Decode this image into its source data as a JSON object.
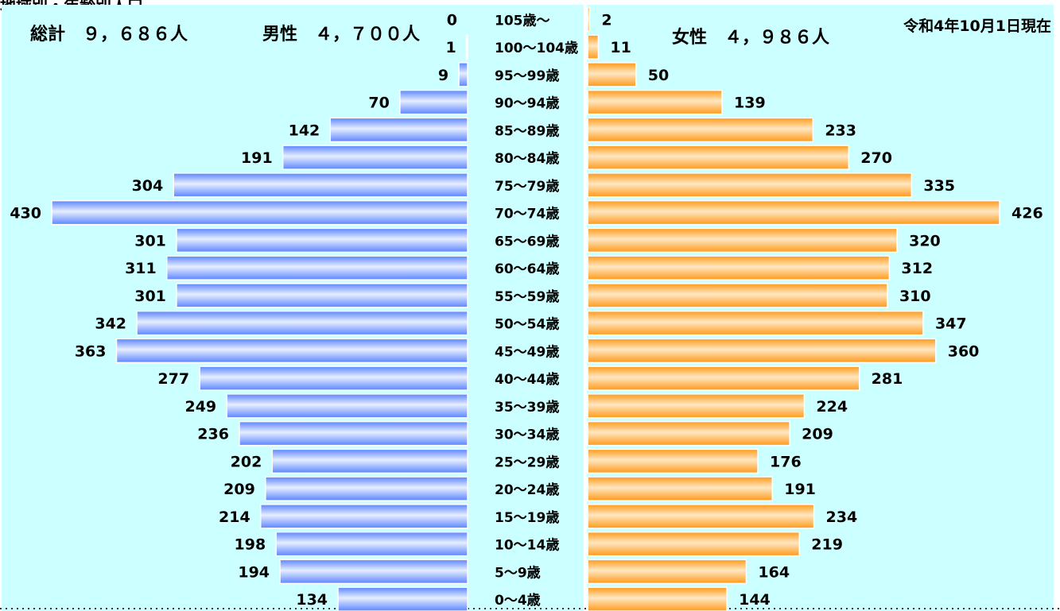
{
  "page_title": "地域別・年齢別人口",
  "chart_data": {
    "type": "bar",
    "title": "地域別・年齢別人口",
    "date": "令和4年10月1日現在",
    "total_label": "総計　９，６８６人",
    "male_label": "男性　４，７００人",
    "female_label": "女性　４，９８６人",
    "categories": [
      "105歳～",
      "100～104歳",
      "95～99歳",
      "90～94歳",
      "85～89歳",
      "80～84歳",
      "75～79歳",
      "70～74歳",
      "65～69歳",
      "60～64歳",
      "55～59歳",
      "50～54歳",
      "45～49歳",
      "40～44歳",
      "35～39歳",
      "30～34歳",
      "25～29歳",
      "20～24歳",
      "15～19歳",
      "10～14歳",
      "5～9歳",
      "0～4歳"
    ],
    "series": [
      {
        "name": "男性",
        "color": "#7aa6ff",
        "values": [
          0,
          1,
          9,
          70,
          142,
          191,
          304,
          430,
          301,
          311,
          301,
          342,
          363,
          277,
          249,
          236,
          202,
          209,
          214,
          198,
          194,
          134
        ]
      },
      {
        "name": "女性",
        "color": "#ffa630",
        "values": [
          2,
          11,
          50,
          139,
          233,
          270,
          335,
          426,
          320,
          312,
          310,
          347,
          360,
          281,
          224,
          209,
          176,
          191,
          234,
          219,
          164,
          144
        ]
      }
    ],
    "background": "#ccffff"
  }
}
